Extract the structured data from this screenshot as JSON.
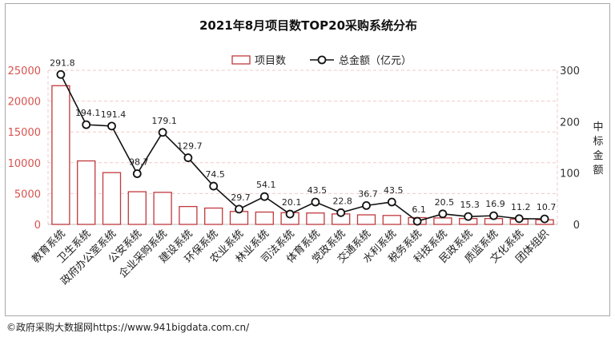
{
  "footer": "©政府采购大数据网https://www.941bigdata.com.cn/",
  "chart_data": {
    "type": "bar",
    "title": "2021年8月项目数TOP20采购系统分布",
    "categories": [
      "教育系统",
      "卫生系统",
      "政府办公室系统",
      "公安系统",
      "企业采购系统",
      "建设系统",
      "环保系统",
      "农业系统",
      "林业系统",
      "司法系统",
      "体育系统",
      "党政系统",
      "交通系统",
      "水利系统",
      "税务系统",
      "科技系统",
      "民政系统",
      "质监系统",
      "文化系统",
      "团体组织"
    ],
    "series": [
      {
        "name": "项目数",
        "type": "bar",
        "axis": "left",
        "color": "#c0393d",
        "values": [
          22500,
          10300,
          8400,
          5300,
          5200,
          2900,
          2650,
          2100,
          2000,
          1900,
          1850,
          1700,
          1550,
          1450,
          1100,
          1050,
          950,
          950,
          850,
          750
        ]
      },
      {
        "name": "总金额（亿元）",
        "type": "line",
        "axis": "right",
        "color": "#111111",
        "values": [
          291.8,
          194.1,
          191.4,
          98.7,
          179.1,
          129.7,
          74.5,
          29.7,
          54.1,
          20.1,
          43.5,
          22.8,
          36.7,
          43.5,
          6.1,
          20.5,
          15.3,
          16.9,
          11.2,
          10.7
        ],
        "labels": [
          "291.8",
          "194.1",
          "191.4",
          "98.7",
          "179.1",
          "129.7",
          "74.5",
          "29.7",
          "54.1",
          "20.1",
          "43.5",
          "22.8",
          "36.7",
          "43.5",
          "6.1",
          "20.5",
          "15.3",
          "16.9",
          "11.2",
          "10.7"
        ]
      }
    ],
    "ylim_left": [
      0,
      25000
    ],
    "yticks_left": [
      "0",
      "5000",
      "10000",
      "15000",
      "20000",
      "25000"
    ],
    "ylim_right": [
      0,
      300
    ],
    "yticks_right": [
      "0",
      "100",
      "200",
      "300"
    ],
    "ylabel_right": "中标金额",
    "legend_position": "top",
    "colors": {
      "left_axis": "#d9534f",
      "right_axis": "#333333",
      "bar_fill": "#ffffff",
      "grid": "#f2c9c9"
    }
  }
}
